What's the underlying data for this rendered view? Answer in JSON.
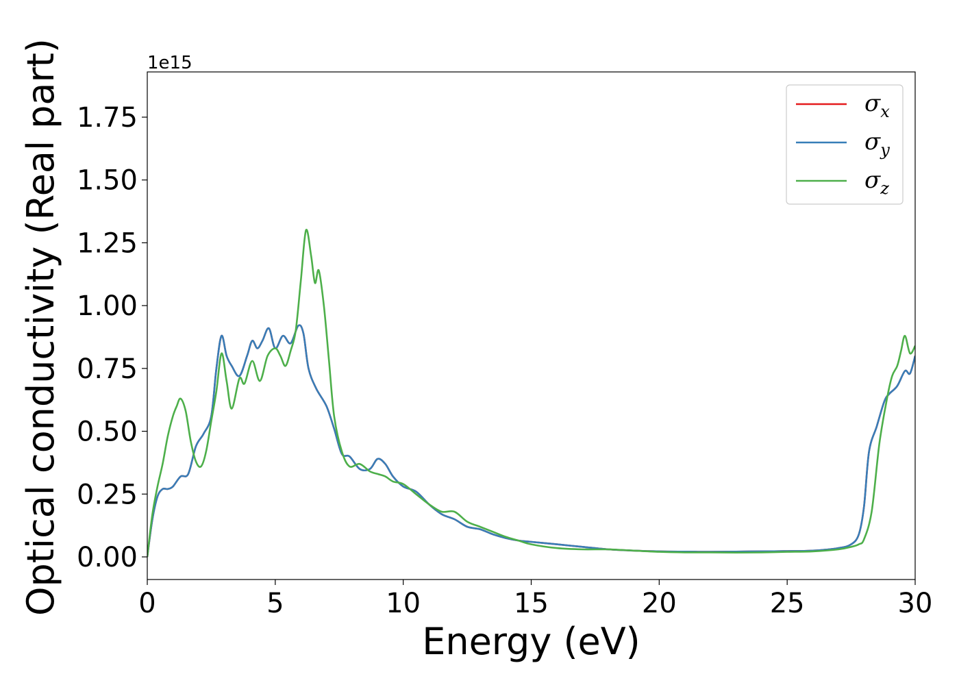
{
  "chart_data": {
    "type": "line",
    "xlabel": "Energy (eV)",
    "ylabel": "Optical conductivity (Real part)",
    "y_offset_text": "1e15",
    "y_scale": 1000000000000000.0,
    "xlim": [
      0,
      30
    ],
    "ylim": [
      -0.09,
      1.93
    ],
    "x_ticks": [
      0,
      5,
      10,
      15,
      20,
      25,
      30
    ],
    "x_tick_labels": [
      "0",
      "5",
      "10",
      "15",
      "20",
      "25",
      "30"
    ],
    "y_ticks": [
      0.0,
      0.25,
      0.5,
      0.75,
      1.0,
      1.25,
      1.5,
      1.75
    ],
    "y_tick_labels": [
      "0.00",
      "0.25",
      "0.50",
      "0.75",
      "1.00",
      "1.25",
      "1.50",
      "1.75"
    ],
    "grid": false,
    "legend": {
      "placement": "top-right",
      "entries": [
        {
          "symbol": "σ",
          "subscript": "x",
          "color": "#e41a1c"
        },
        {
          "symbol": "σ",
          "subscript": "y",
          "color": "#377eb8"
        },
        {
          "symbol": "σ",
          "subscript": "z",
          "color": "#4daf4a"
        }
      ]
    },
    "series": [
      {
        "name": "σx",
        "color": "#e41a1c",
        "x": [
          0,
          0.2,
          0.4,
          0.6,
          0.8,
          1.0,
          1.3,
          1.6,
          1.9,
          2.2,
          2.5,
          2.7,
          2.9,
          3.1,
          3.3,
          3.6,
          3.9,
          4.1,
          4.3,
          4.5,
          4.75,
          5.0,
          5.3,
          5.6,
          5.9,
          6.1,
          6.3,
          6.6,
          7.0,
          7.3,
          7.6,
          7.9,
          8.3,
          8.7,
          9.0,
          9.3,
          9.6,
          10,
          10.5,
          11,
          11.5,
          12,
          12.5,
          13,
          13.5,
          14,
          14.5,
          15,
          16,
          17,
          18,
          19,
          20,
          21,
          22,
          23,
          24,
          25,
          26,
          27,
          27.5,
          27.8,
          28.0,
          28.2,
          28.5,
          28.8,
          29.0,
          29.3,
          29.6,
          29.8,
          30.0
        ],
        "values": [
          0.0,
          0.15,
          0.24,
          0.27,
          0.27,
          0.28,
          0.32,
          0.33,
          0.44,
          0.49,
          0.56,
          0.75,
          0.88,
          0.8,
          0.76,
          0.72,
          0.8,
          0.86,
          0.83,
          0.86,
          0.91,
          0.83,
          0.88,
          0.85,
          0.92,
          0.89,
          0.75,
          0.67,
          0.6,
          0.51,
          0.41,
          0.4,
          0.35,
          0.35,
          0.39,
          0.37,
          0.32,
          0.28,
          0.26,
          0.21,
          0.17,
          0.15,
          0.12,
          0.11,
          0.09,
          0.075,
          0.065,
          0.06,
          0.05,
          0.04,
          0.03,
          0.025,
          0.022,
          0.021,
          0.02,
          0.021,
          0.022,
          0.023,
          0.025,
          0.035,
          0.05,
          0.09,
          0.2,
          0.42,
          0.52,
          0.62,
          0.65,
          0.68,
          0.74,
          0.73,
          0.8
        ]
      },
      {
        "name": "σy",
        "color": "#377eb8",
        "x": [
          0,
          0.2,
          0.4,
          0.6,
          0.8,
          1.0,
          1.3,
          1.6,
          1.9,
          2.2,
          2.5,
          2.7,
          2.9,
          3.1,
          3.3,
          3.6,
          3.9,
          4.1,
          4.3,
          4.5,
          4.75,
          5.0,
          5.3,
          5.6,
          5.9,
          6.1,
          6.3,
          6.6,
          7.0,
          7.3,
          7.6,
          7.9,
          8.3,
          8.7,
          9.0,
          9.3,
          9.6,
          10,
          10.5,
          11,
          11.5,
          12,
          12.5,
          13,
          13.5,
          14,
          14.5,
          15,
          16,
          17,
          18,
          19,
          20,
          21,
          22,
          23,
          24,
          25,
          26,
          27,
          27.5,
          27.8,
          28.0,
          28.2,
          28.5,
          28.8,
          29.0,
          29.3,
          29.6,
          29.8,
          30.0
        ],
        "values": [
          0.0,
          0.15,
          0.24,
          0.27,
          0.27,
          0.28,
          0.32,
          0.33,
          0.44,
          0.49,
          0.56,
          0.75,
          0.88,
          0.8,
          0.76,
          0.72,
          0.8,
          0.86,
          0.83,
          0.86,
          0.91,
          0.83,
          0.88,
          0.85,
          0.92,
          0.89,
          0.75,
          0.67,
          0.6,
          0.51,
          0.41,
          0.4,
          0.35,
          0.35,
          0.39,
          0.37,
          0.32,
          0.28,
          0.26,
          0.21,
          0.17,
          0.15,
          0.12,
          0.11,
          0.09,
          0.075,
          0.065,
          0.06,
          0.05,
          0.04,
          0.03,
          0.025,
          0.022,
          0.021,
          0.02,
          0.021,
          0.022,
          0.023,
          0.025,
          0.035,
          0.05,
          0.09,
          0.2,
          0.42,
          0.52,
          0.62,
          0.65,
          0.68,
          0.74,
          0.73,
          0.8
        ]
      },
      {
        "name": "σz",
        "color": "#4daf4a",
        "x": [
          0,
          0.2,
          0.4,
          0.6,
          0.8,
          1.0,
          1.15,
          1.3,
          1.5,
          1.7,
          1.9,
          2.1,
          2.3,
          2.5,
          2.7,
          2.9,
          3.1,
          3.3,
          3.6,
          3.8,
          4.1,
          4.4,
          4.7,
          5.0,
          5.2,
          5.4,
          5.6,
          5.8,
          6.0,
          6.2,
          6.4,
          6.55,
          6.7,
          6.9,
          7.1,
          7.3,
          7.6,
          7.9,
          8.3,
          8.7,
          9.0,
          9.3,
          9.6,
          10,
          10.5,
          11,
          11.5,
          12,
          12.5,
          13,
          13.5,
          14,
          14.5,
          15,
          16,
          17,
          18,
          19,
          20,
          21,
          22,
          23,
          24,
          25,
          26,
          27,
          27.5,
          27.8,
          28.0,
          28.3,
          28.6,
          28.9,
          29.1,
          29.3,
          29.45,
          29.6,
          29.8,
          30.0
        ],
        "values": [
          0.0,
          0.17,
          0.28,
          0.37,
          0.48,
          0.56,
          0.6,
          0.63,
          0.58,
          0.46,
          0.38,
          0.36,
          0.42,
          0.54,
          0.66,
          0.81,
          0.7,
          0.59,
          0.71,
          0.69,
          0.78,
          0.7,
          0.8,
          0.83,
          0.8,
          0.76,
          0.82,
          0.9,
          1.1,
          1.3,
          1.2,
          1.09,
          1.14,
          1.0,
          0.78,
          0.56,
          0.42,
          0.36,
          0.37,
          0.34,
          0.33,
          0.32,
          0.3,
          0.29,
          0.25,
          0.21,
          0.18,
          0.18,
          0.14,
          0.12,
          0.1,
          0.08,
          0.065,
          0.05,
          0.035,
          0.03,
          0.03,
          0.025,
          0.02,
          0.018,
          0.018,
          0.017,
          0.018,
          0.02,
          0.022,
          0.03,
          0.04,
          0.05,
          0.07,
          0.18,
          0.45,
          0.63,
          0.72,
          0.76,
          0.82,
          0.88,
          0.81,
          0.84
        ]
      }
    ]
  }
}
